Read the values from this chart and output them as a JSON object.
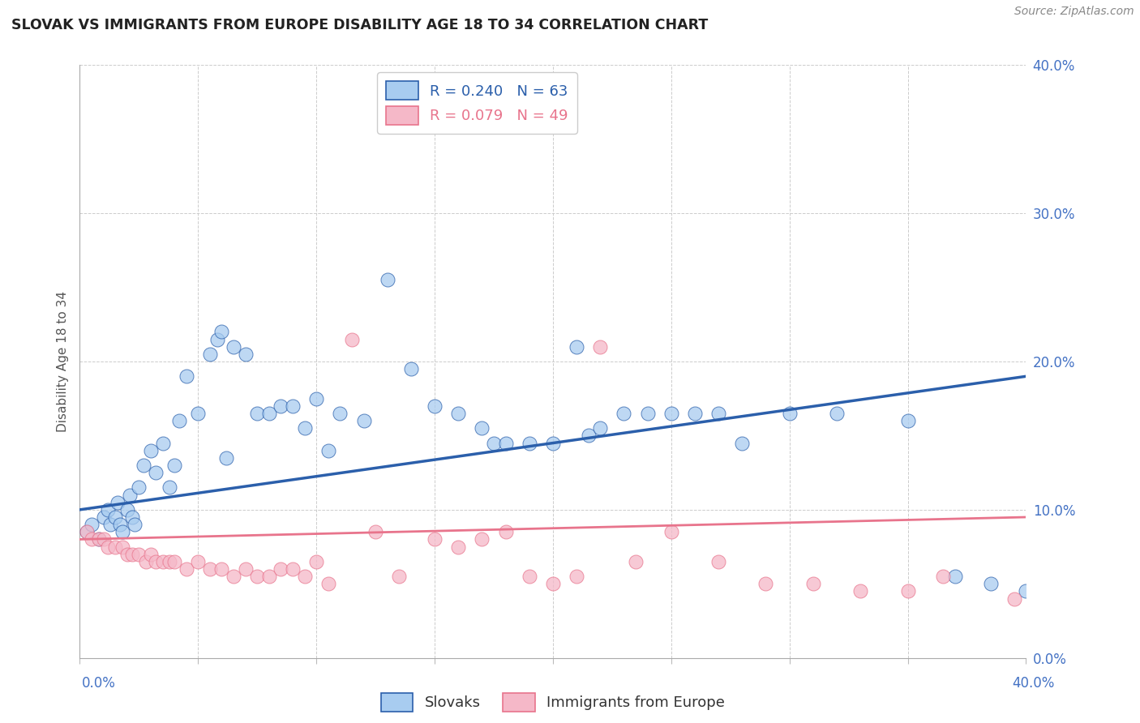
{
  "title": "SLOVAK VS IMMIGRANTS FROM EUROPE DISABILITY AGE 18 TO 34 CORRELATION CHART",
  "source": "Source: ZipAtlas.com",
  "ylabel": "Disability Age 18 to 34",
  "ytick_vals": [
    0,
    10,
    20,
    30,
    40
  ],
  "xlim": [
    0,
    40
  ],
  "ylim": [
    0,
    40
  ],
  "blue_R": 0.24,
  "blue_N": 63,
  "pink_R": 0.079,
  "pink_N": 49,
  "blue_color": "#A8CCF0",
  "pink_color": "#F5B8C8",
  "blue_line_color": "#2B5FAB",
  "pink_line_color": "#E8748C",
  "legend_label_blue": "Slovaks",
  "legend_label_pink": "Immigrants from Europe",
  "blue_x": [
    0.3,
    0.5,
    0.8,
    1.0,
    1.2,
    1.3,
    1.5,
    1.6,
    1.7,
    1.8,
    2.0,
    2.1,
    2.2,
    2.3,
    2.5,
    2.7,
    3.0,
    3.2,
    3.5,
    3.8,
    4.0,
    4.2,
    4.5,
    5.0,
    5.5,
    5.8,
    6.0,
    6.2,
    6.5,
    7.0,
    7.5,
    8.0,
    8.5,
    9.0,
    9.5,
    10.0,
    10.5,
    11.0,
    12.0,
    13.0,
    14.0,
    15.0,
    16.0,
    17.0,
    17.5,
    18.0,
    19.0,
    20.0,
    21.0,
    21.5,
    22.0,
    23.0,
    24.0,
    25.0,
    26.0,
    27.0,
    28.0,
    30.0,
    32.0,
    35.0,
    37.0,
    38.5,
    40.0
  ],
  "blue_y": [
    8.5,
    9.0,
    8.0,
    9.5,
    10.0,
    9.0,
    9.5,
    10.5,
    9.0,
    8.5,
    10.0,
    11.0,
    9.5,
    9.0,
    11.5,
    13.0,
    14.0,
    12.5,
    14.5,
    11.5,
    13.0,
    16.0,
    19.0,
    16.5,
    20.5,
    21.5,
    22.0,
    13.5,
    21.0,
    20.5,
    16.5,
    16.5,
    17.0,
    17.0,
    15.5,
    17.5,
    14.0,
    16.5,
    16.0,
    25.5,
    19.5,
    17.0,
    16.5,
    15.5,
    14.5,
    14.5,
    14.5,
    14.5,
    21.0,
    15.0,
    15.5,
    16.5,
    16.5,
    16.5,
    16.5,
    16.5,
    14.5,
    16.5,
    16.5,
    16.0,
    5.5,
    5.0,
    4.5
  ],
  "pink_x": [
    0.3,
    0.5,
    0.8,
    1.0,
    1.2,
    1.5,
    1.8,
    2.0,
    2.2,
    2.5,
    2.8,
    3.0,
    3.2,
    3.5,
    3.8,
    4.0,
    4.5,
    5.0,
    5.5,
    6.0,
    6.5,
    7.0,
    7.5,
    8.0,
    8.5,
    9.0,
    9.5,
    10.0,
    10.5,
    11.5,
    12.5,
    13.5,
    15.0,
    16.0,
    17.0,
    18.0,
    19.0,
    20.0,
    21.0,
    22.0,
    23.5,
    25.0,
    27.0,
    29.0,
    31.0,
    33.0,
    35.0,
    36.5,
    39.5
  ],
  "pink_y": [
    8.5,
    8.0,
    8.0,
    8.0,
    7.5,
    7.5,
    7.5,
    7.0,
    7.0,
    7.0,
    6.5,
    7.0,
    6.5,
    6.5,
    6.5,
    6.5,
    6.0,
    6.5,
    6.0,
    6.0,
    5.5,
    6.0,
    5.5,
    5.5,
    6.0,
    6.0,
    5.5,
    6.5,
    5.0,
    21.5,
    8.5,
    5.5,
    8.0,
    7.5,
    8.0,
    8.5,
    5.5,
    5.0,
    5.5,
    21.0,
    6.5,
    8.5,
    6.5,
    5.0,
    5.0,
    4.5,
    4.5,
    5.5,
    4.0
  ],
  "blue_line_start_y": 10.0,
  "blue_line_end_y": 19.0,
  "pink_line_start_y": 8.0,
  "pink_line_end_y": 9.5
}
